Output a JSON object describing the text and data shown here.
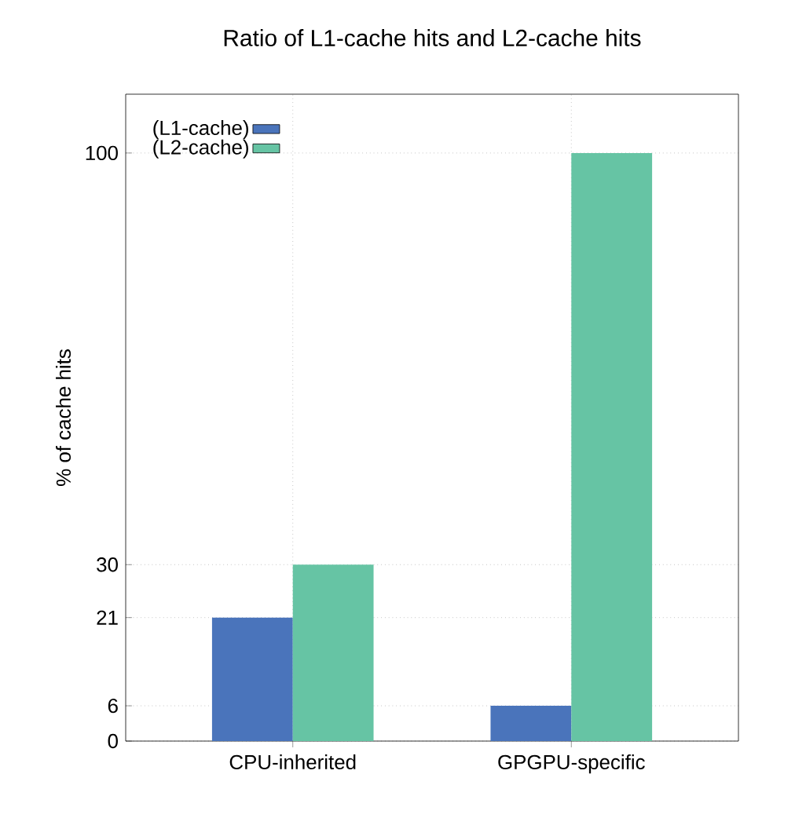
{
  "chart_data": {
    "type": "bar",
    "title": "Ratio of L1-cache hits and L2-cache hits",
    "ylabel": "% of cache hits",
    "categories": [
      "CPU-inherited",
      "GPGPU-specific"
    ],
    "series": [
      {
        "name": "(L1-cache)",
        "color": "#4a74bb",
        "values": [
          21,
          6
        ]
      },
      {
        "name": "(L2-cache)",
        "color": "#66c4a4",
        "values": [
          30,
          100
        ]
      }
    ],
    "ylim": [
      0,
      110
    ],
    "yticks": [
      0,
      6,
      21,
      30,
      100
    ],
    "grid": true,
    "legend": "top left"
  }
}
